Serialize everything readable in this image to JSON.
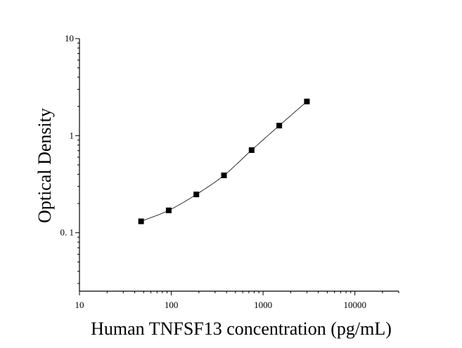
{
  "chart_data": {
    "type": "scatter",
    "title": "",
    "xlabel": "Human TNFSF13 concentration (pg/mL)",
    "ylabel": "Optical Density",
    "x_scale": "log",
    "y_scale": "log",
    "xlim": [
      10,
      30000
    ],
    "ylim": [
      0.025,
      10
    ],
    "x_ticks": [
      {
        "value": 10,
        "label": "10"
      },
      {
        "value": 100,
        "label": "100"
      },
      {
        "value": 1000,
        "label": "1000"
      },
      {
        "value": 10000,
        "label": "10000"
      }
    ],
    "y_ticks": [
      {
        "value": 0.1,
        "label": "0. 1"
      },
      {
        "value": 1,
        "label": "1"
      },
      {
        "value": 10,
        "label": "10"
      }
    ],
    "grid": false,
    "legend": "none",
    "series": [
      {
        "x": [
          46.9,
          93.8,
          187.5,
          375,
          750,
          1500,
          3000
        ],
        "y": [
          0.131,
          0.17,
          0.248,
          0.39,
          0.71,
          1.27,
          2.25
        ],
        "marker": "square",
        "fit_line": true,
        "color": "#000000"
      }
    ]
  }
}
